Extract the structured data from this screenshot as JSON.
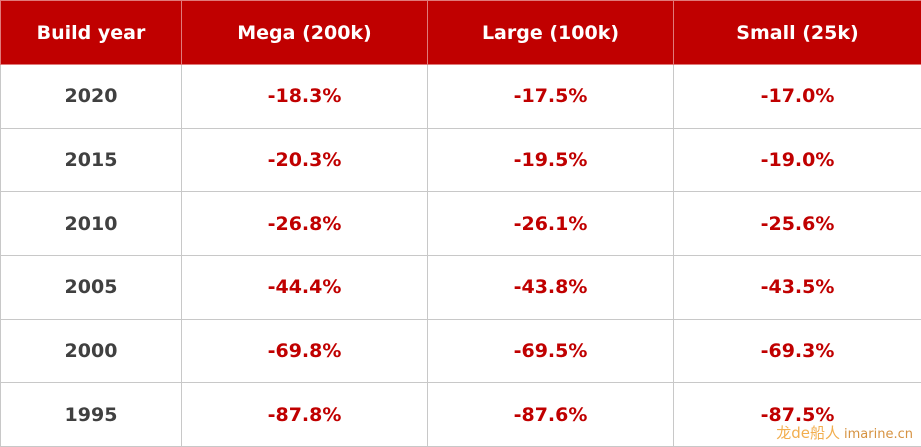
{
  "table": {
    "header": [
      "Build year",
      "Mega (200k)",
      "Large (100k)",
      "Small (25k)"
    ],
    "rows": [
      [
        "2020",
        "-18.3%",
        "-17.5%",
        "-17.0%"
      ],
      [
        "2015",
        "-20.3%",
        "-19.5%",
        "-19.0%"
      ],
      [
        "2010",
        "-26.8%",
        "-26.1%",
        "-25.6%"
      ],
      [
        "2005",
        "-44.4%",
        "-43.8%",
        "-43.5%"
      ],
      [
        "2000",
        "-69.8%",
        "-69.5%",
        "-69.3%"
      ],
      [
        "1995",
        "-87.8%",
        "-87.6%",
        "-87.5%"
      ]
    ]
  },
  "watermark": {
    "brand": "龙de船人",
    "site": "imarine.cn"
  }
}
